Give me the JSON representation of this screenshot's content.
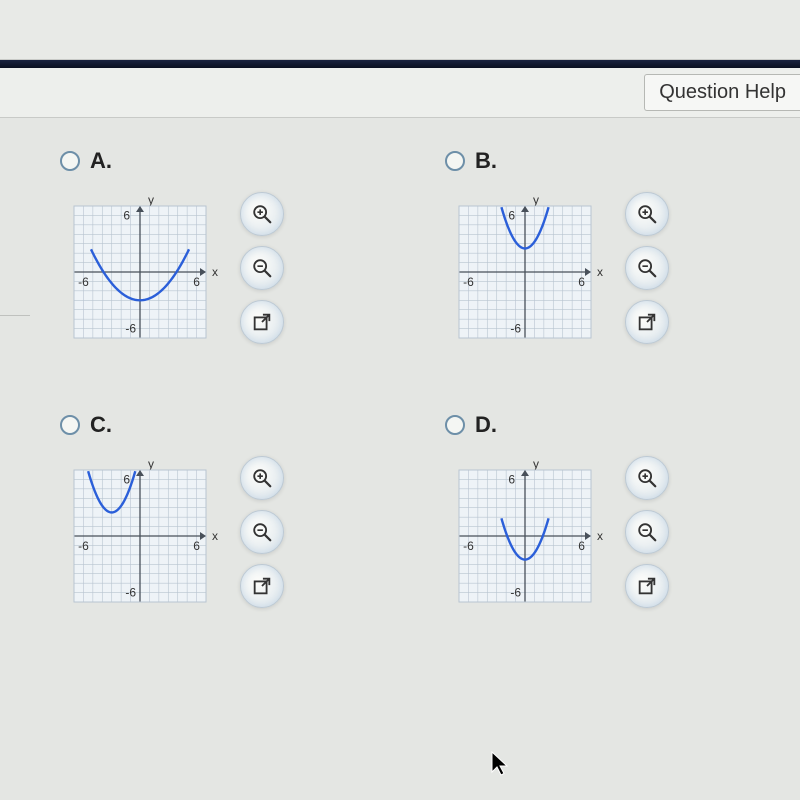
{
  "help_button": "Question Help",
  "options": {
    "A": {
      "label": "A."
    },
    "B": {
      "label": "B."
    },
    "C": {
      "label": "C."
    },
    "D": {
      "label": "D."
    }
  },
  "axis": {
    "xlabel": "x",
    "ylabel": "y",
    "xlim": [
      -7,
      7
    ],
    "ylim": [
      -7,
      7
    ],
    "tick_labels": {
      "pos": "6",
      "neg": "-6"
    },
    "grid_color": "#b8c4d0",
    "axis_color": "#48505a",
    "text_color": "#333",
    "background": "#eef3f7"
  },
  "curves": {
    "color": "#2b5fd9",
    "width": 2.4,
    "A": {
      "vertex": [
        0,
        -3
      ],
      "a": 0.2,
      "xrange": [
        -5.2,
        5.2
      ]
    },
    "B": {
      "vertex": [
        0,
        2.5
      ],
      "a": 0.7,
      "xrange": [
        -2.5,
        2.5
      ]
    },
    "C": {
      "vertex": [
        -3,
        2.5
      ],
      "a": 0.7,
      "xrange": [
        -5.5,
        -0.5
      ]
    },
    "D": {
      "vertex": [
        0,
        -2.5
      ],
      "a": 0.7,
      "xrange": [
        -2.5,
        2.5
      ]
    }
  },
  "icons": {
    "zoom_in": "zoom-in-icon",
    "zoom_out": "zoom-out-icon",
    "popout": "popout-icon"
  }
}
